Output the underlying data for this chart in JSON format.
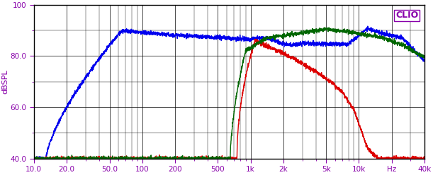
{
  "title": "CLIO",
  "ylabel": "dBSPL",
  "xmin": 10.0,
  "xmax": 40000.0,
  "ymin": 40.0,
  "ymax": 100.0,
  "yticks": [
    40.0,
    60.0,
    80.0,
    100.0
  ],
  "ytick_labels": [
    "40.0",
    "60.0",
    "80.0",
    "100"
  ],
  "xtick_labels": [
    "10.0",
    "20.0",
    "50.0",
    "100",
    "200",
    "500",
    "1k",
    "2k",
    "5k",
    "10k",
    "Hz",
    "40k"
  ],
  "xtick_values": [
    10.0,
    20.0,
    50.0,
    100,
    200,
    500,
    1000,
    2000,
    5000,
    10000,
    20000,
    40000
  ],
  "bg_color": "#ffffff",
  "grid_color": "#000000",
  "line_blue": "#0000ee",
  "line_red": "#dd0000",
  "line_green": "#006600",
  "linewidth": 1.0
}
